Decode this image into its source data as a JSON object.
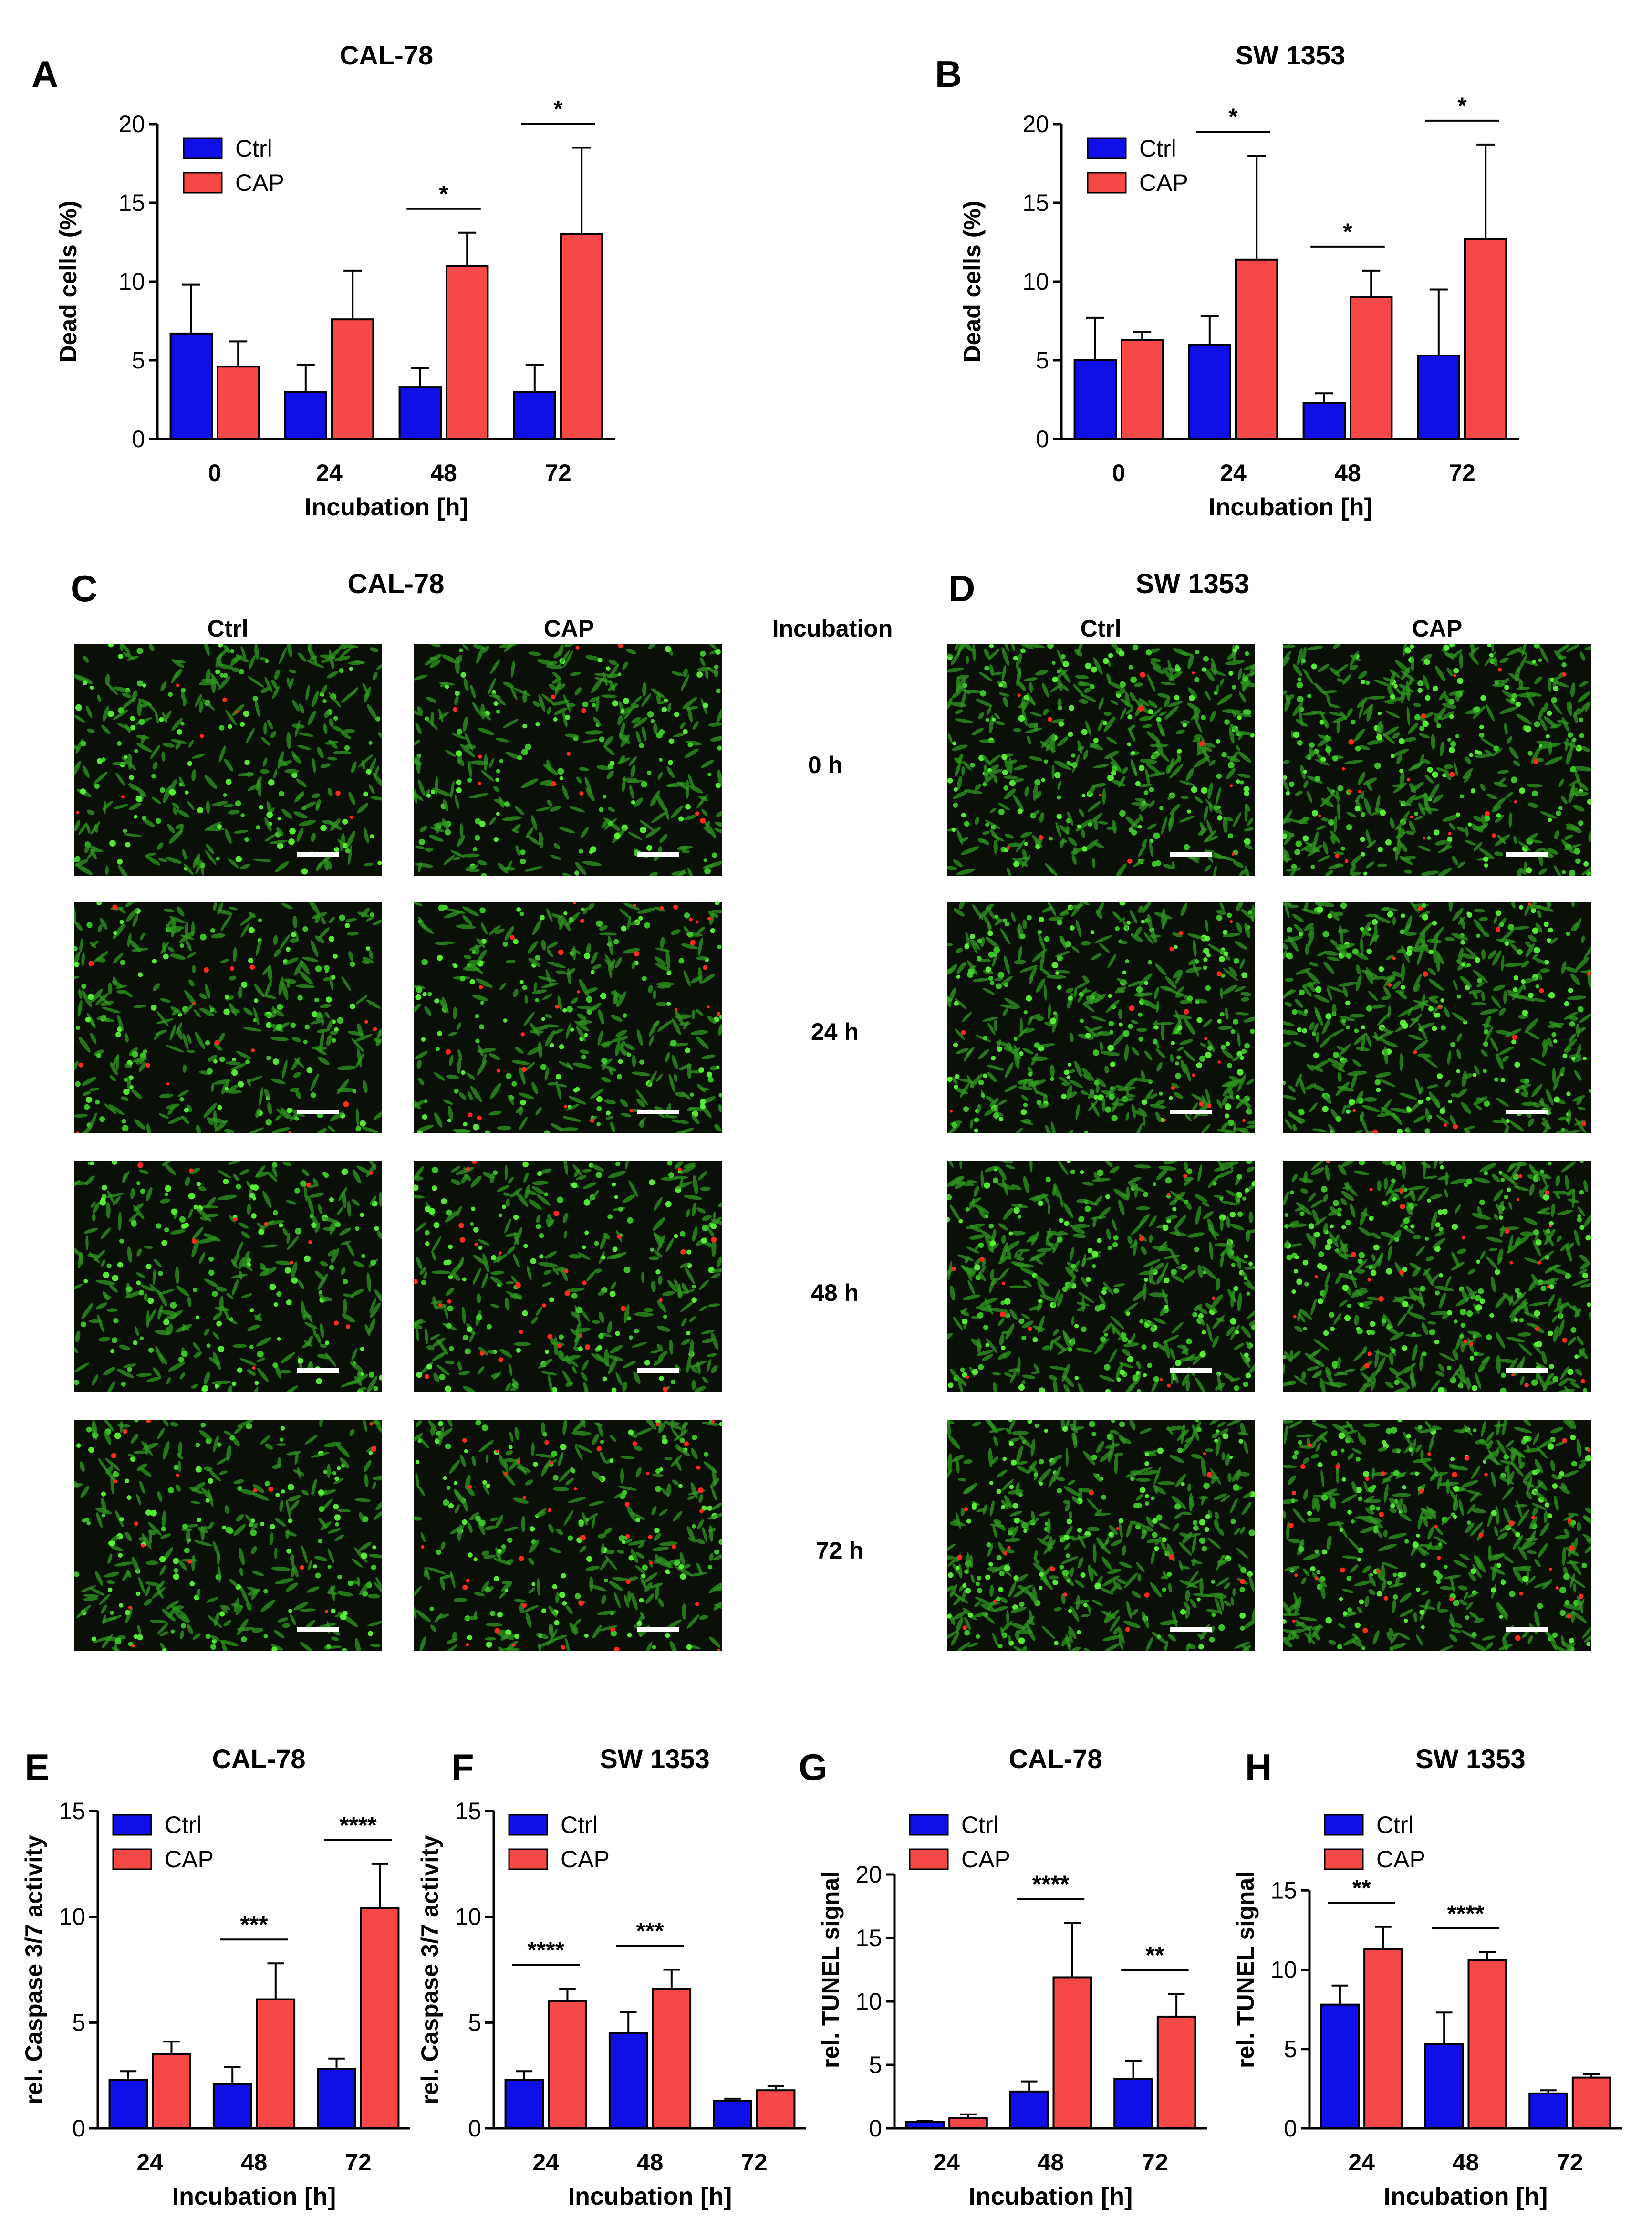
{
  "colors": {
    "ctrl": "#1010e6",
    "cap": "#f74848",
    "frame": "#000000"
  },
  "panel_letters": [
    "A",
    "B",
    "C",
    "D",
    "E",
    "F",
    "G",
    "H"
  ],
  "chart_data": [
    {
      "id": "A",
      "type": "bar",
      "title": "CAL-78",
      "xlabel": "Incubation [h]",
      "ylabel": "Dead cells (%)",
      "categories": [
        "0",
        "24",
        "48",
        "72"
      ],
      "ylim": [
        0,
        20
      ],
      "yticks": [
        "0",
        "5",
        "10",
        "15",
        "20"
      ],
      "legend": "top-left",
      "series": [
        {
          "name": "Ctrl",
          "values": [
            6.7,
            3.0,
            3.3,
            3.0
          ],
          "err": [
            3.1,
            1.7,
            1.2,
            1.7
          ]
        },
        {
          "name": "CAP",
          "values": [
            4.6,
            7.6,
            11.0,
            13.0
          ],
          "err": [
            1.6,
            3.1,
            2.1,
            5.5
          ]
        }
      ],
      "sig": [
        {
          "cat": 2,
          "label": "*"
        },
        {
          "cat": 3,
          "label": "*"
        }
      ]
    },
    {
      "id": "B",
      "type": "bar",
      "title": "SW 1353",
      "xlabel": "Incubation [h]",
      "ylabel": "Dead cells (%)",
      "categories": [
        "0",
        "24",
        "48",
        "72"
      ],
      "ylim": [
        0,
        20
      ],
      "yticks": [
        "0",
        "5",
        "10",
        "15",
        "20"
      ],
      "legend": "top-left",
      "series": [
        {
          "name": "Ctrl",
          "values": [
            5.0,
            6.0,
            2.3,
            5.3
          ],
          "err": [
            2.7,
            1.8,
            0.6,
            4.2
          ]
        },
        {
          "name": "CAP",
          "values": [
            6.3,
            11.4,
            9.0,
            12.7
          ],
          "err": [
            0.5,
            6.6,
            1.7,
            6.0
          ]
        }
      ],
      "sig": [
        {
          "cat": 1,
          "label": "*"
        },
        {
          "cat": 2,
          "label": "*"
        },
        {
          "cat": 3,
          "label": "*"
        }
      ]
    },
    {
      "id": "E",
      "type": "bar",
      "title": "CAL-78",
      "xlabel": "Incubation [h]",
      "ylabel": "rel. Caspase 3/7 activity",
      "categories": [
        "24",
        "48",
        "72"
      ],
      "ylim": [
        0,
        15
      ],
      "yticks": [
        "0",
        "5",
        "10",
        "15"
      ],
      "legend": "top-left",
      "series": [
        {
          "name": "Ctrl",
          "values": [
            2.3,
            2.1,
            2.8
          ],
          "err": [
            0.4,
            0.8,
            0.5
          ]
        },
        {
          "name": "CAP",
          "values": [
            3.5,
            6.1,
            10.4
          ],
          "err": [
            0.6,
            1.7,
            2.1
          ]
        }
      ],
      "sig": [
        {
          "cat": 1,
          "label": "***"
        },
        {
          "cat": 2,
          "label": "****"
        }
      ]
    },
    {
      "id": "F",
      "type": "bar",
      "title": "SW 1353",
      "xlabel": "Incubation [h]",
      "ylabel": "rel. Caspase 3/7 activity",
      "categories": [
        "24",
        "48",
        "72"
      ],
      "ylim": [
        0,
        15
      ],
      "yticks": [
        "0",
        "5",
        "10",
        "15"
      ],
      "legend": "top-left",
      "series": [
        {
          "name": "Ctrl",
          "values": [
            2.3,
            4.5,
            1.3
          ],
          "err": [
            0.4,
            1.0,
            0.1
          ]
        },
        {
          "name": "CAP",
          "values": [
            6.0,
            6.6,
            1.8
          ],
          "err": [
            0.6,
            0.9,
            0.2
          ]
        }
      ],
      "sig": [
        {
          "cat": 0,
          "label": "****"
        },
        {
          "cat": 1,
          "label": "***"
        }
      ]
    },
    {
      "id": "G",
      "type": "bar",
      "title": "CAL-78",
      "xlabel": "Incubation [h]",
      "ylabel": "rel. TUNEL signal",
      "categories": [
        "24",
        "48",
        "72"
      ],
      "ylim": [
        0,
        25
      ],
      "yticks": [
        "0",
        "5",
        "10",
        "15",
        "20"
      ],
      "legend": "top-left",
      "series": [
        {
          "name": "Ctrl",
          "values": [
            0.5,
            2.9,
            3.9
          ],
          "err": [
            0.1,
            0.8,
            1.4
          ]
        },
        {
          "name": "CAP",
          "values": [
            0.8,
            11.9,
            8.8
          ],
          "err": [
            0.3,
            4.3,
            1.8
          ]
        }
      ],
      "sig": [
        {
          "cat": 1,
          "label": "****"
        },
        {
          "cat": 2,
          "label": "**"
        }
      ]
    },
    {
      "id": "H",
      "type": "bar",
      "title": "SW 1353",
      "xlabel": "Incubation [h]",
      "ylabel": "rel. TUNEL signal",
      "categories": [
        "24",
        "48",
        "72"
      ],
      "ylim": [
        0,
        20
      ],
      "yticks": [
        "0",
        "5",
        "10",
        "15"
      ],
      "legend": "top-left",
      "series": [
        {
          "name": "Ctrl",
          "values": [
            7.8,
            5.3,
            2.2
          ],
          "err": [
            1.2,
            2.0,
            0.2
          ]
        },
        {
          "name": "CAP",
          "values": [
            11.3,
            10.6,
            3.2
          ],
          "err": [
            1.4,
            0.5,
            0.2
          ]
        }
      ],
      "sig": [
        {
          "cat": 0,
          "label": "**"
        },
        {
          "cat": 1,
          "label": "****"
        }
      ]
    }
  ],
  "micrographs": {
    "C": {
      "title": "CAL-78",
      "columns": [
        "Ctrl",
        "CAP"
      ],
      "rows": 4,
      "red_density": [
        [
          2,
          3
        ],
        [
          4,
          7
        ],
        [
          3,
          8
        ],
        [
          4,
          10
        ]
      ]
    },
    "D": {
      "title": "SW 1353",
      "columns": [
        "Ctrl",
        "CAP"
      ],
      "rows": 4,
      "red_density": [
        [
          3,
          5
        ],
        [
          4,
          4
        ],
        [
          3,
          7
        ],
        [
          4,
          9
        ]
      ]
    },
    "incubation_header": "Incubation",
    "time_labels": [
      "0 h",
      "24 h",
      "48 h",
      "72 h"
    ]
  }
}
